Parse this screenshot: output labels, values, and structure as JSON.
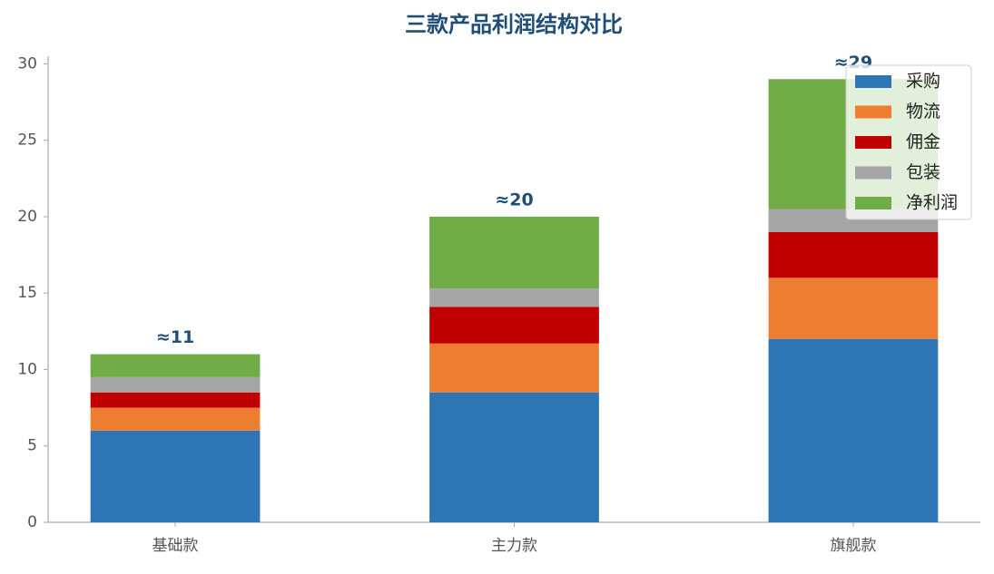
{
  "chart_data": {
    "type": "stacked_bar",
    "title": "三款产品利润结构对比",
    "categories": [
      "基础款",
      "主力款",
      "旗舰款"
    ],
    "series": [
      {
        "name": "采购",
        "color": "#2e75b6",
        "values": [
          6,
          8.5,
          12
        ]
      },
      {
        "name": "物流",
        "color": "#ed7d31",
        "values": [
          1.5,
          3.2,
          4
        ]
      },
      {
        "name": "佣金",
        "color": "#c00000",
        "values": [
          1,
          2.4,
          3
        ]
      },
      {
        "name": "包装",
        "color": "#a5a5a5",
        "values": [
          1,
          1.2,
          1.5
        ]
      },
      {
        "name": "净利润",
        "color": "#70ad47",
        "values": [
          1.5,
          4.7,
          8.5
        ]
      }
    ],
    "totals": [
      11,
      20,
      29
    ],
    "total_labels": [
      "≈11",
      "≈20",
      "≈29"
    ],
    "ylim": [
      0,
      30.5
    ],
    "yticks": [
      0,
      5,
      10,
      15,
      20,
      25,
      30
    ],
    "legend": "upper right"
  }
}
